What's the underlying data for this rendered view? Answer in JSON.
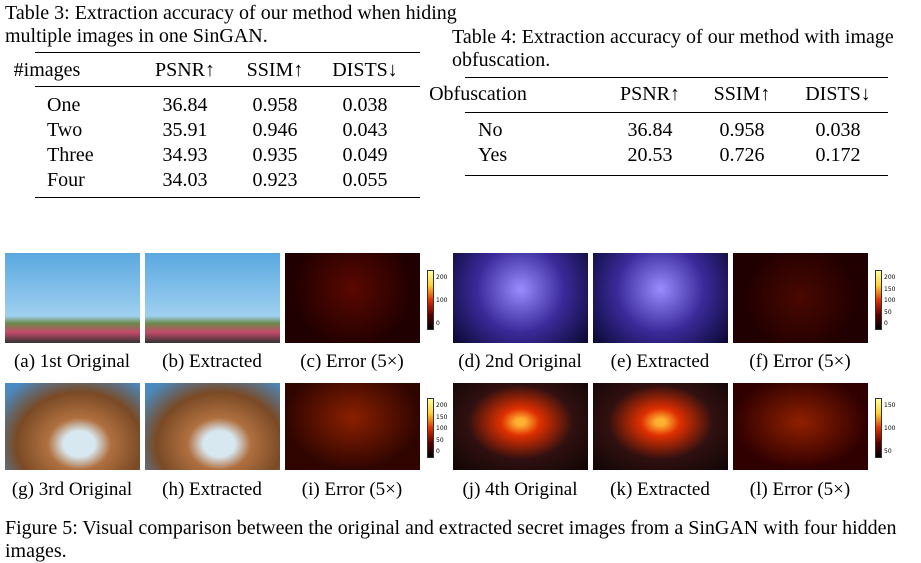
{
  "table3": {
    "caption": "Table 3: Extraction accuracy of our method when hiding multiple images in one SinGAN.",
    "header": [
      "#images",
      "PSNR↑",
      "SSIM↑",
      "DISTS↓"
    ],
    "rows": [
      [
        "One",
        36.84,
        0.958,
        0.038
      ],
      [
        "Two",
        35.91,
        0.946,
        0.043
      ],
      [
        "Three",
        34.93,
        0.935,
        0.049
      ],
      [
        "Four",
        34.03,
        0.923,
        0.055
      ]
    ]
  },
  "table4": {
    "caption": "Table 4: Extraction accuracy of our method with image obfuscation.",
    "header": [
      "Obfuscation",
      "PSNR↑",
      "SSIM↑",
      "DISTS↓"
    ],
    "rows": [
      [
        "No",
        36.84,
        0.958,
        0.038
      ],
      [
        "Yes",
        20.53,
        0.726,
        0.172
      ]
    ]
  },
  "figure": {
    "panels": [
      "(a) 1st Original",
      "(b) Extracted",
      "(c) Error (5×)",
      "(d) 2nd Original",
      "(e) Extracted",
      "(f) Error (5×)",
      "(g) 3rd Original",
      "(h) Extracted",
      "(i) Error (5×)",
      "(j) 4th Original",
      "(k) Extracted",
      "(l) Error (5×)"
    ],
    "colorbars": [
      [
        "200",
        "100",
        "0"
      ],
      [
        "200",
        "150",
        "100",
        "50",
        "0"
      ],
      [
        "200",
        "150",
        "100",
        "50",
        "0"
      ],
      [
        "150",
        "100",
        "50"
      ]
    ],
    "caption": "Figure 5: Visual comparison between the original and extracted secret images from a SinGAN with four hidden images."
  }
}
